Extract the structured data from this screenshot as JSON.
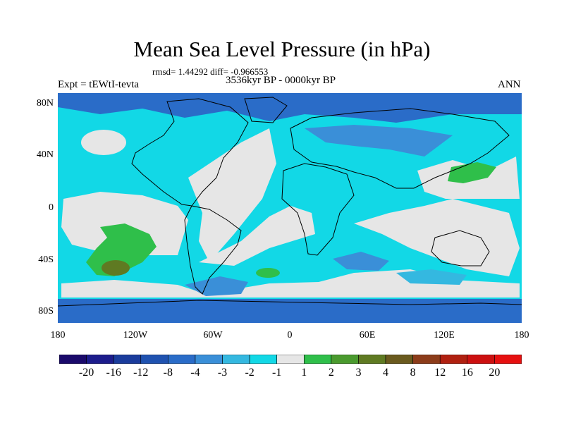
{
  "title": "Mean Sea Level Pressure (in hPa)",
  "stats": "rmsd= 1.44292 diff= -0.966553",
  "period": "3536kyr BP - 0000kyr BP",
  "experiment": "Expt = tEWtI-tevta",
  "season": "ANN",
  "lat_labels": [
    "80N",
    "40N",
    "0",
    "40S",
    "80S"
  ],
  "lon_labels": [
    "180",
    "120W",
    "60W",
    "0",
    "60E",
    "120E",
    "180"
  ],
  "colorbar": {
    "labels": [
      "-20",
      "-16",
      "-12",
      "-8",
      "-4",
      "-3",
      "-2",
      "-1",
      "1",
      "2",
      "3",
      "4",
      "8",
      "12",
      "16",
      "20"
    ],
    "colors": [
      "#1a0a6b",
      "#1c1c8c",
      "#1a3c9c",
      "#1f52b0",
      "#2a6cc8",
      "#3a8fd8",
      "#34b8e0",
      "#12d8e6",
      "#e6e6e6",
      "#2fbf4a",
      "#4a9a2e",
      "#5f7a22",
      "#6a5a1e",
      "#8c3c1a",
      "#b02010",
      "#cc1010",
      "#e61010"
    ]
  },
  "map_colors": {
    "neutral": "#e6e6e6",
    "light_blue": "#12d8e6",
    "mid_blue": "#34b8e0",
    "blue": "#3a8fd8",
    "dark_blue": "#2a6cc8",
    "green": "#2fbf4a",
    "dark_green": "#4a9a2e",
    "olive": "#5f7a22"
  }
}
